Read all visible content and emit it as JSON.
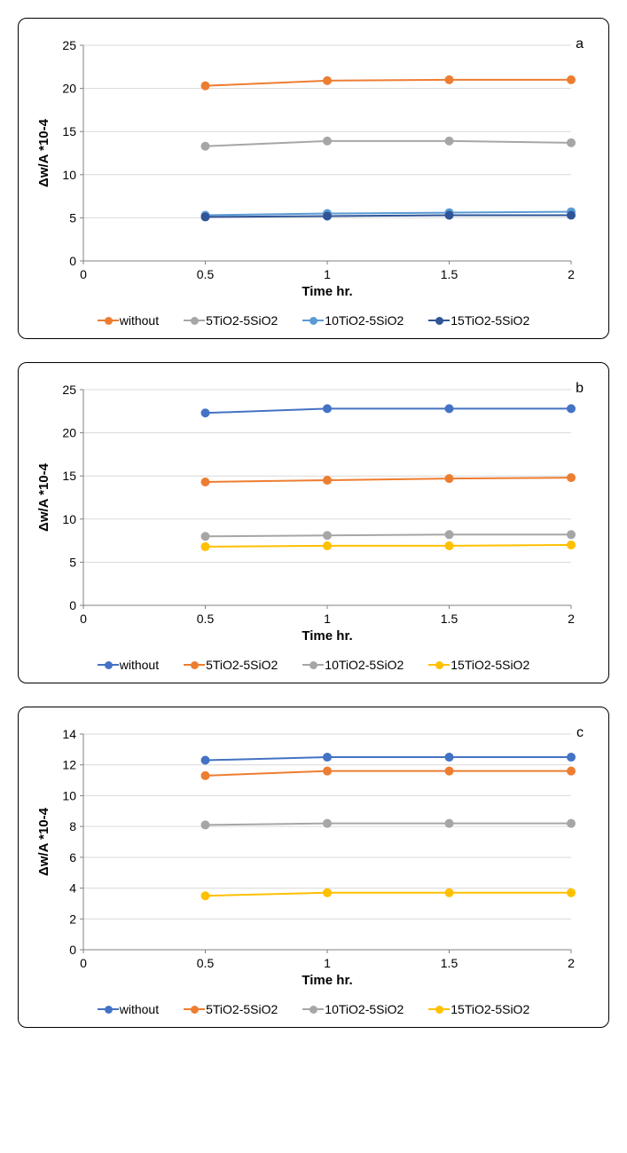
{
  "shared": {
    "x_label": "Time hr.",
    "y_label": "Δw/A *10-4",
    "x_ticks": [
      0,
      0.5,
      1,
      1.5,
      2
    ],
    "x_values": [
      0.5,
      1,
      1.5,
      2
    ],
    "marker_radius": 5,
    "line_width": 2,
    "grid_color": "#d9d9d9",
    "axis_color": "#808080",
    "tick_font_size": 14
  },
  "panels": [
    {
      "letter": "a",
      "ylim": [
        0,
        25
      ],
      "y_ticks": [
        0,
        5,
        10,
        15,
        20,
        25
      ],
      "series": [
        {
          "name": "without",
          "color": "#ed7d31",
          "values": [
            20.3,
            20.9,
            21.0,
            21.0
          ]
        },
        {
          "name": "5TiO2-5SiO2",
          "color": "#a6a6a6",
          "values": [
            13.3,
            13.9,
            13.9,
            13.7
          ]
        },
        {
          "name": "10TiO2-5SiO2",
          "color": "#5b9bd5",
          "values": [
            5.3,
            5.5,
            5.6,
            5.7
          ]
        },
        {
          "name": "15TiO2-5SiO2",
          "color": "#2f5597",
          "values": [
            5.1,
            5.2,
            5.3,
            5.3
          ]
        }
      ]
    },
    {
      "letter": "b",
      "ylim": [
        0,
        25
      ],
      "y_ticks": [
        0,
        5,
        10,
        15,
        20,
        25
      ],
      "series": [
        {
          "name": "without",
          "color": "#4472c4",
          "values": [
            22.3,
            22.8,
            22.8,
            22.8
          ]
        },
        {
          "name": "5TiO2-5SiO2",
          "color": "#ed7d31",
          "values": [
            14.3,
            14.5,
            14.7,
            14.8
          ]
        },
        {
          "name": "10TiO2-5SiO2",
          "color": "#a6a6a6",
          "values": [
            8.0,
            8.1,
            8.2,
            8.2
          ]
        },
        {
          "name": "15TiO2-5SiO2",
          "color": "#ffc000",
          "values": [
            6.8,
            6.9,
            6.9,
            7.0
          ]
        }
      ]
    },
    {
      "letter": "c",
      "ylim": [
        0,
        14
      ],
      "y_ticks": [
        0,
        2,
        4,
        6,
        8,
        10,
        12,
        14
      ],
      "series": [
        {
          "name": "without",
          "color": "#4472c4",
          "values": [
            12.3,
            12.5,
            12.5,
            12.5
          ]
        },
        {
          "name": "5TiO2-5SiO2",
          "color": "#ed7d31",
          "values": [
            11.3,
            11.6,
            11.6,
            11.6
          ]
        },
        {
          "name": "10TiO2-5SiO2",
          "color": "#a6a6a6",
          "values": [
            8.1,
            8.2,
            8.2,
            8.2
          ]
        },
        {
          "name": "15TiO2-5SiO2",
          "color": "#ffc000",
          "values": [
            3.5,
            3.7,
            3.7,
            3.7
          ]
        }
      ]
    }
  ]
}
